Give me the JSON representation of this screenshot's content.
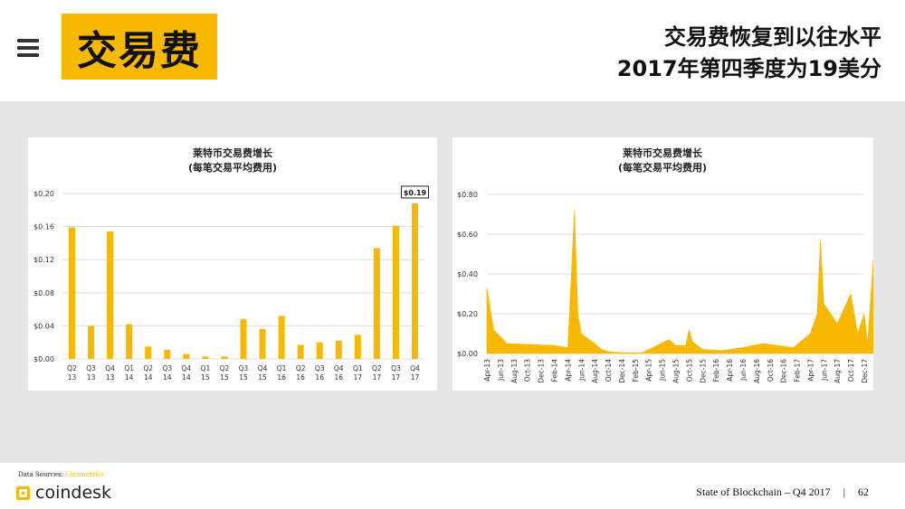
{
  "header": {
    "menu_icon": "hamburger-menu-icon",
    "title": "交易费",
    "headline_line1": "交易费恢复到以往水平",
    "headline_line2": "2017年第四季度为19美分"
  },
  "colors": {
    "accent": "#f7b800",
    "band": "#e6e6e6",
    "text": "#111111"
  },
  "chart_data": [
    {
      "type": "bar",
      "title_line1": "莱特币交易费增长",
      "title_line2": "(每笔交易平均费用)",
      "categories": [
        [
          "Q2",
          "13"
        ],
        [
          "Q3",
          "13"
        ],
        [
          "Q4",
          "13"
        ],
        [
          "Q1",
          "14"
        ],
        [
          "Q2",
          "14"
        ],
        [
          "Q3",
          "14"
        ],
        [
          "Q4",
          "14"
        ],
        [
          "Q1",
          "15"
        ],
        [
          "Q2",
          "15"
        ],
        [
          "Q3",
          "15"
        ],
        [
          "Q4",
          "15"
        ],
        [
          "Q1",
          "16"
        ],
        [
          "Q2",
          "16"
        ],
        [
          "Q3",
          "16"
        ],
        [
          "Q4",
          "16"
        ],
        [
          "Q1",
          "17"
        ],
        [
          "Q2",
          "17"
        ],
        [
          "Q3",
          "17"
        ],
        [
          "Q4",
          "17"
        ]
      ],
      "values": [
        0.159,
        0.04,
        0.154,
        0.042,
        0.015,
        0.011,
        0.006,
        0.003,
        0.003,
        0.048,
        0.036,
        0.052,
        0.017,
        0.02,
        0.022,
        0.029,
        0.134,
        0.161,
        0.188
      ],
      "ylim": [
        0,
        0.2
      ],
      "yticks": [
        "$0.00",
        "$0.04",
        "$0.08",
        "$0.12",
        "$0.16",
        "$0.20"
      ],
      "annotation": "$0.19",
      "grid": true
    },
    {
      "type": "area",
      "title_line1": "莱特币交易费增长",
      "title_line2": "(每笔交易平均费用)",
      "x_labels": [
        "Apr-13",
        "Jun-13",
        "Aug-13",
        "Oct-13",
        "Dec-13",
        "Feb-14",
        "Apr-14",
        "Jun-14",
        "Aug-14",
        "Oct-14",
        "Dec-14",
        "Feb-15",
        "Apr-15",
        "Jun-15",
        "Aug-15",
        "Oct-15",
        "Dec-15",
        "Feb-16",
        "Apr-16",
        "Jun-16",
        "Aug-16",
        "Oct-16",
        "Dec-16",
        "Feb-17",
        "Apr-17",
        "Jun-17",
        "Aug-17",
        "Oct-17",
        "Dec-17"
      ],
      "x_months": [
        0,
        56,
        60,
        69,
        100,
        112,
        150,
        200,
        240,
        250,
        265,
        290,
        320,
        360,
        376
      ],
      "anchor_points": [
        [
          0,
          0.33
        ],
        [
          2,
          0.12
        ],
        [
          6,
          0.05
        ],
        [
          20,
          0.04
        ],
        [
          24,
          0.03
        ],
        [
          26,
          0.72
        ],
        [
          27,
          0.2
        ],
        [
          28,
          0.1
        ],
        [
          32,
          0.05
        ],
        [
          34,
          0.02
        ],
        [
          36,
          0.01
        ],
        [
          39,
          0.005
        ],
        [
          46,
          0.003
        ],
        [
          54,
          0.07
        ],
        [
          56,
          0.04
        ],
        [
          59,
          0.04
        ],
        [
          60,
          0.12
        ],
        [
          61,
          0.06
        ],
        [
          64,
          0.02
        ],
        [
          70,
          0.015
        ],
        [
          76,
          0.03
        ],
        [
          82,
          0.05
        ],
        [
          91,
          0.03
        ],
        [
          96,
          0.1
        ],
        [
          98,
          0.2
        ],
        [
          99,
          0.57
        ],
        [
          100,
          0.25
        ],
        [
          104,
          0.15
        ],
        [
          108,
          0.3
        ],
        [
          110,
          0.1
        ],
        [
          112,
          0.2
        ],
        [
          113,
          0.05
        ],
        [
          116,
          0.8
        ],
        [
          117,
          0.1
        ]
      ],
      "ylim": [
        0,
        0.8
      ],
      "yticks": [
        "$0.00",
        "$0.20",
        "$0.40",
        "$0.60",
        "$0.80"
      ],
      "grid": true
    }
  ],
  "footer": {
    "source_label": "Data Sources:",
    "source_name": "Coinmetrics",
    "logo_icon": "coindesk-logo-icon",
    "logo_text": "coindesk",
    "report": "State of Blockchain – Q4 2017",
    "separator": "|",
    "page": "62"
  }
}
